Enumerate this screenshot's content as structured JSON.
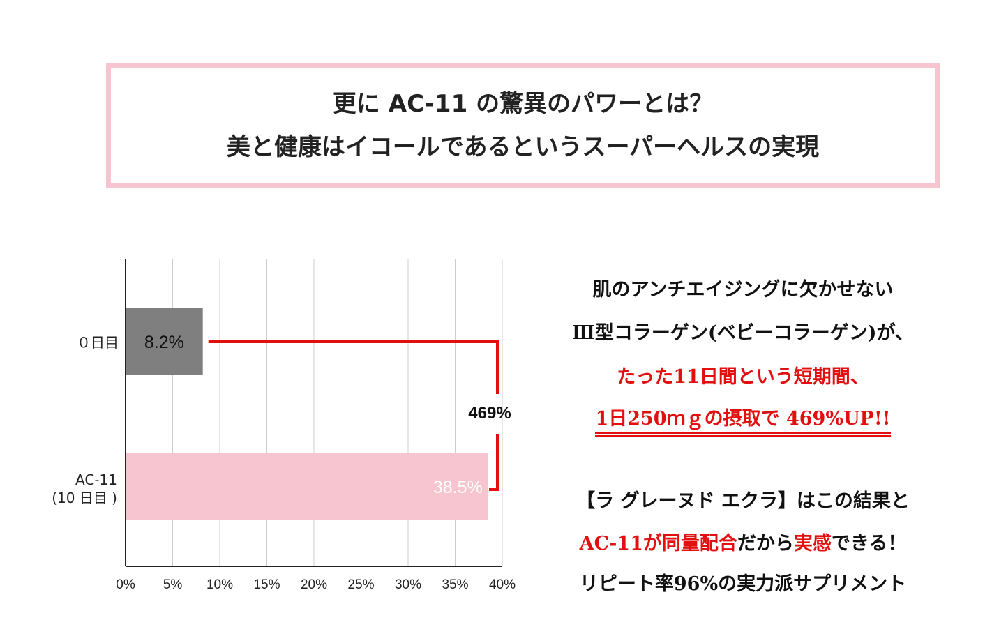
{
  "header": {
    "line1": "更に AC-11 の驚異のパワーとは？",
    "line2": "美と健康はイコールであるというスーパーヘルスの実現"
  },
  "colors": {
    "frame": "#f7c5d0",
    "bar_day0": "#7f7f7f",
    "bar_ac11": "#f7c5d0",
    "accent_red": "#e20f0f",
    "grid": "#cccccc"
  },
  "chart_data": {
    "type": "bar",
    "orientation": "horizontal",
    "categories": [
      {
        "line1": "０日目",
        "line2": ""
      },
      {
        "line1": "AC-11",
        "line2": "(10 日目 )"
      }
    ],
    "values": [
      8.2,
      38.5
    ],
    "value_labels": [
      "8.2%",
      "38.5%"
    ],
    "x_ticks": [
      "0%",
      "5%",
      "10%",
      "15%",
      "20%",
      "25%",
      "30%",
      "35%",
      "40%"
    ],
    "xlim": [
      0,
      40
    ],
    "grid": true,
    "annotation": "469%"
  },
  "copy": {
    "p1": "肌のアンチエイジングに欠かせない",
    "p2": "Ⅲ型コラーゲン(ベビーコラーゲン)が、",
    "p3": "たった11日間という短期間、",
    "p4": "1日250ｍｇの摂取で 469%UP!!",
    "p5": "【ラ グレーヌド エクラ】はこの結果と",
    "p6_red1": "AC-11が同量配合",
    "p6_mid": "だから",
    "p6_red2": "実感",
    "p6_end": "できる！",
    "p7": "リピート率96%の実力派サプリメント"
  }
}
